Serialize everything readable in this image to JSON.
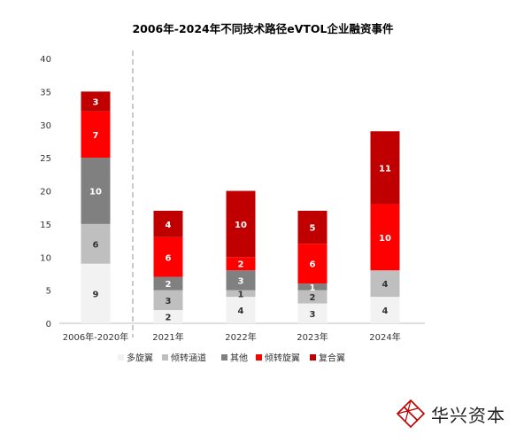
{
  "chart_data": {
    "type": "bar",
    "stacked": true,
    "title": "2006年-2024年不同技术路径eVTOL企业融资事件",
    "categories": [
      "2006年-2020年",
      "2021年",
      "2022年",
      "2023年",
      "2024年"
    ],
    "ylim": [
      0,
      40
    ],
    "yticks": [
      "0",
      "5",
      "10",
      "15",
      "20",
      "25",
      "30",
      "35",
      "40"
    ],
    "grid": false,
    "legend_position": "bottom",
    "series": [
      {
        "name": "多旋翼",
        "color": "#f2f2f2",
        "label_color": "#333333",
        "values": [
          9,
          2,
          4,
          3,
          4
        ]
      },
      {
        "name": "倾转涵道",
        "color": "#bfbfbf",
        "label_color": "#333333",
        "values": [
          6,
          3,
          1,
          2,
          4
        ]
      },
      {
        "name": "其他",
        "color": "#808080",
        "label_color": "#ffffff",
        "values": [
          10,
          2,
          3,
          1,
          0
        ]
      },
      {
        "name": "倾转旋翼",
        "color": "#ff0000",
        "label_color": "#ffffff",
        "values": [
          7,
          6,
          2,
          6,
          10
        ]
      },
      {
        "name": "复合翼",
        "color": "#c00000",
        "label_color": "#ffffff",
        "values": [
          3,
          4,
          10,
          5,
          11
        ]
      }
    ]
  },
  "brand": {
    "name": "华兴资本",
    "icon": "huaxing-logo-icon"
  }
}
